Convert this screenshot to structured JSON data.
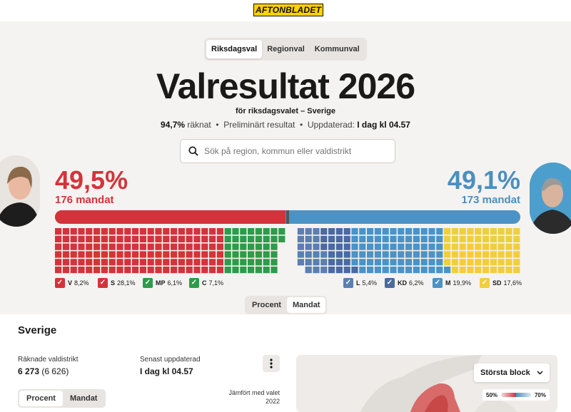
{
  "logo": "AFTONBLADET",
  "tabs": [
    {
      "label": "Riksdagsval",
      "active": true
    },
    {
      "label": "Regionval",
      "active": false
    },
    {
      "label": "Kommunval",
      "active": false
    }
  ],
  "title": "Valresultat 2026",
  "subtitle": "för riksdagsvalet – Sverige",
  "status": {
    "counted_pct": "94,7%",
    "counted_label": "räknat",
    "preliminary": "Preliminärt resultat",
    "updated_label": "Uppdaterad:",
    "updated_value": "I dag kl 04.57",
    "separator": "•"
  },
  "search": {
    "placeholder": "Sök på region, kommun eller valdistrikt"
  },
  "left_block": {
    "percent": "49,5%",
    "mandates": "176 mandat",
    "color": "#d4333b"
  },
  "right_block": {
    "percent": "49,1%",
    "mandates": "173 mandat",
    "color": "#4b93c6"
  },
  "majority_bar": {
    "left_fraction": 0.495,
    "right_fraction": 0.491
  },
  "parties": [
    {
      "code": "V",
      "pct": "8,2%",
      "color": "#d4333b",
      "seats": 30,
      "side": "left"
    },
    {
      "code": "S",
      "pct": "28,1%",
      "color": "#d4333b",
      "seats": 102,
      "side": "left"
    },
    {
      "code": "MP",
      "pct": "6,1%",
      "color": "#2e9b4a",
      "seats": 21,
      "side": "left"
    },
    {
      "code": "C",
      "pct": "7,1%",
      "color": "#2e9b4a",
      "seats": 23,
      "side": "left"
    },
    {
      "code": "L",
      "pct": "5,4%",
      "color": "#5a7fb0",
      "seats": 20,
      "side": "right"
    },
    {
      "code": "KD",
      "pct": "6,2%",
      "color": "#4a6aa0",
      "seats": 22,
      "side": "right"
    },
    {
      "code": "M",
      "pct": "19,9%",
      "color": "#4b93c6",
      "seats": 72,
      "side": "right"
    },
    {
      "code": "SD",
      "pct": "17,6%",
      "color": "#f1ce3c",
      "seats": 59,
      "side": "right"
    }
  ],
  "view_toggle": [
    {
      "label": "Procent",
      "active": false
    },
    {
      "label": "Mandat",
      "active": true
    }
  ],
  "section_title": "Sverige",
  "counted_districts": {
    "label": "Räknade valdistrikt",
    "value": "6 273",
    "total": "(6 626)"
  },
  "last_updated": {
    "label": "Senast uppdaterad",
    "value": "I dag kl 04.57"
  },
  "more_icon": "kebab-icon",
  "bottom_toggle": [
    {
      "label": "Procent",
      "active": true
    },
    {
      "label": "Mandat",
      "active": false
    }
  ],
  "compare_label": "Jämfört med valet 2022",
  "map": {
    "dropdown_label": "Största block",
    "scale_min": "50%",
    "scale_max": "70%"
  }
}
